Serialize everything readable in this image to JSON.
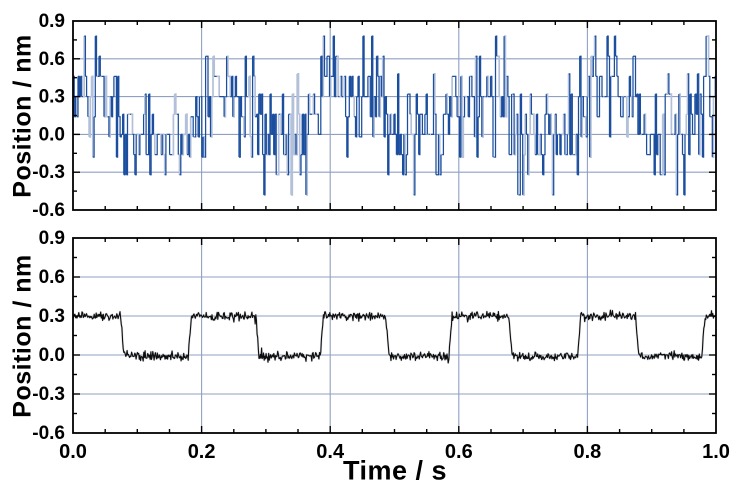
{
  "colors": {
    "background": "#ffffff",
    "grid": "#8fa1c1",
    "axis": "#000000",
    "text": "#000000",
    "top_series": "#1b4e9e",
    "top_series_light": "#b3c0d9",
    "bottom_series": "#0d0d0d",
    "bottom_series_halo": "#c3c7ce"
  },
  "chart_data": [
    {
      "type": "line",
      "name": "raw-position-vs-time",
      "title": "",
      "xlabel": "",
      "ylabel": "Position / nm",
      "xlim": [
        0.0,
        1.0
      ],
      "ylim": [
        -0.6,
        0.9
      ],
      "grid": true,
      "legend": "none",
      "y_tick_values": [
        0.9,
        0.6,
        0.3,
        0.0,
        -0.3,
        -0.6
      ],
      "y_tick_labels": [
        "0.9",
        "0.6",
        "0.3",
        "0.0",
        "-0.3",
        "-0.6"
      ],
      "y_minor_step": 0.15,
      "x_tick_values": [],
      "x_tick_labels": [],
      "x_major_step": 0.2,
      "x_minor_step": 0.05,
      "grid_x": [
        0.2,
        0.4,
        0.6,
        0.8
      ],
      "grid_y": [
        0.6,
        0.3,
        0.0,
        -0.3
      ],
      "series": [
        {
          "name": "position-raw-telegraph-signal",
          "color_key": "top_series",
          "halo_color_key": "top_series_light",
          "initial_state": "high",
          "level_high": 0.3,
          "level_low": 0.0,
          "transitions": [
            0.075,
            0.18,
            0.285,
            0.385,
            0.487,
            0.585,
            0.678,
            0.785,
            0.875,
            0.978
          ],
          "noise_type": "quantized",
          "noise_step": 0.16,
          "noise_max_steps": 3,
          "value_max": 0.78,
          "value_min": -0.5,
          "samples": 520,
          "seed": 20231
        }
      ]
    },
    {
      "type": "line",
      "name": "filtered-position-vs-time",
      "title": "",
      "xlabel": "Time / s",
      "ylabel": "Position / nm",
      "xlim": [
        0.0,
        1.0
      ],
      "ylim": [
        -0.6,
        0.9
      ],
      "grid": true,
      "legend": "none",
      "y_tick_values": [
        0.9,
        0.6,
        0.3,
        0.0,
        -0.3,
        -0.6
      ],
      "y_tick_labels": [
        "0.9",
        "0.6",
        "0.3",
        "0.0",
        "-0.3",
        "-0.6"
      ],
      "y_minor_step": 0.15,
      "x_tick_values": [
        0.0,
        0.2,
        0.4,
        0.6,
        0.8,
        1.0
      ],
      "x_tick_labels": [
        "0.0",
        "0.2",
        "0.4",
        "0.6",
        "0.8",
        "1.0"
      ],
      "x_major_step": 0.2,
      "x_minor_step": 0.05,
      "grid_x": [
        0.2,
        0.4,
        0.6,
        0.8
      ],
      "grid_y": [
        0.6,
        0.3,
        0.0,
        -0.3
      ],
      "series": [
        {
          "name": "position-filtered-square-wave",
          "color_key": "bottom_series",
          "halo_color_key": "bottom_series_halo",
          "initial_state": "high",
          "level_high": 0.3,
          "level_low": -0.01,
          "transitions": [
            0.075,
            0.18,
            0.285,
            0.385,
            0.487,
            0.585,
            0.678,
            0.785,
            0.875,
            0.978
          ],
          "noise_type": "gaussian",
          "noise_sigma": 0.016,
          "rise_samples": 5,
          "samples": 1000,
          "seed": 777
        }
      ]
    }
  ]
}
